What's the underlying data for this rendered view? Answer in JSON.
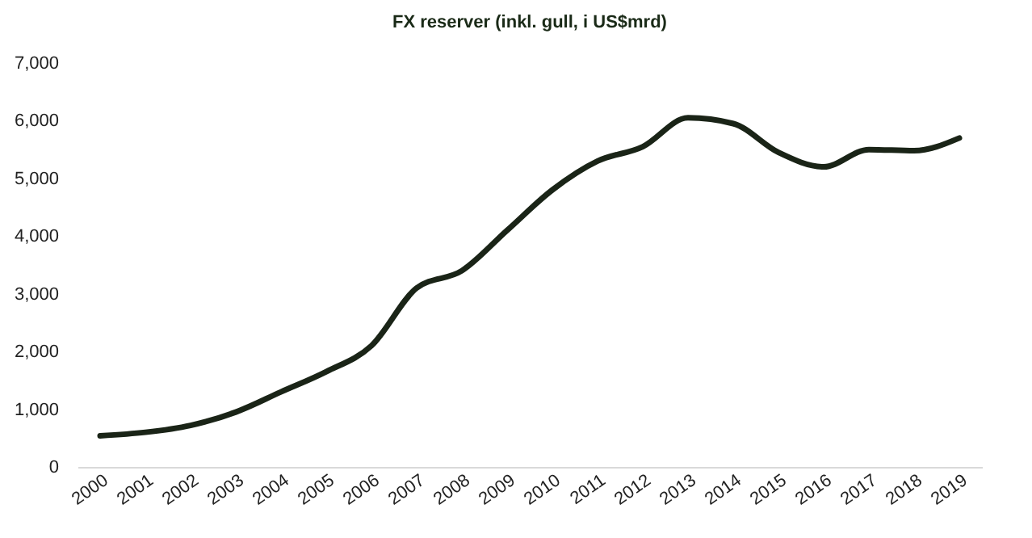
{
  "chart_data": {
    "type": "line",
    "title": "FX reserver (inkl. gull, i US$mrd)",
    "categories": [
      "2000",
      "2001",
      "2002",
      "2003",
      "2004",
      "2005",
      "2006",
      "2007",
      "2008",
      "2009",
      "2010",
      "2011",
      "2012",
      "2013",
      "2014",
      "2015",
      "2016",
      "2017",
      "2018",
      "2019"
    ],
    "series": [
      {
        "color": "#1a2417",
        "values": [
          540,
          600,
          720,
          950,
          1300,
          1650,
          2100,
          3100,
          3400,
          4100,
          4800,
          5300,
          5550,
          6050,
          5950,
          5450,
          5200,
          5500,
          5480,
          5700
        ]
      }
    ],
    "ylim": [
      0,
      7000
    ],
    "yticks": [
      0,
      {
        "value": 1000,
        "label": "1,000"
      },
      {
        "value": 2000,
        "label": "2,000"
      },
      {
        "value": 3000,
        "label": "3,000"
      },
      {
        "value": 4000,
        "label": "4,000"
      },
      {
        "value": 5000,
        "label": "5,000"
      },
      {
        "value": 6000,
        "label": "6,000"
      },
      {
        "value": 7000,
        "label": "7,000"
      }
    ],
    "grid": false
  }
}
